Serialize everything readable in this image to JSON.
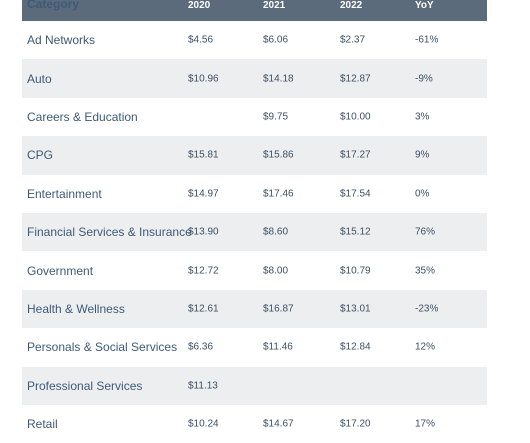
{
  "table": {
    "headers": [
      "Category",
      "2020",
      "2021",
      "2022",
      "YoY"
    ],
    "rows": [
      {
        "category": "Ad Networks",
        "y2020": "$4.56",
        "y2021": "$6.06",
        "y2022": "$2.37",
        "yoy": "-61%"
      },
      {
        "category": "Auto",
        "y2020": "$10.96",
        "y2021": "$14.18",
        "y2022": "$12.87",
        "yoy": "-9%"
      },
      {
        "category": "Careers & Education",
        "y2020": "",
        "y2021": "$9.75",
        "y2022": "$10.00",
        "yoy": "3%"
      },
      {
        "category": "CPG",
        "y2020": "$15.81",
        "y2021": "$15.86",
        "y2022": "$17.27",
        "yoy": "9%"
      },
      {
        "category": "Entertainment",
        "y2020": "$14.97",
        "y2021": "$17.46",
        "y2022": "$17.54",
        "yoy": "0%"
      },
      {
        "category": "Financial Services & Insurance",
        "y2020": "$13.90",
        "y2021": "$8.60",
        "y2022": "$15.12",
        "yoy": "76%"
      },
      {
        "category": "Government",
        "y2020": "$12.72",
        "y2021": "$8.00",
        "y2022": "$10.79",
        "yoy": "35%"
      },
      {
        "category": "Health & Wellness",
        "y2020": "$12.61",
        "y2021": "$16.87",
        "y2022": "$13.01",
        "yoy": "-23%"
      },
      {
        "category": "Personals & Social Services",
        "y2020": "$6.36",
        "y2021": "$11.46",
        "y2022": "$12.84",
        "yoy": "12%"
      },
      {
        "category": "Professional Services",
        "y2020": "$11.13",
        "y2021": "",
        "y2022": "",
        "yoy": ""
      },
      {
        "category": "Retail",
        "y2020": "$10.24",
        "y2021": "$14.67",
        "y2022": "$17.20",
        "yoy": "17%"
      }
    ]
  },
  "colors": {
    "header_bg": "#5b6b7c",
    "alt_row_bg": "#edeef0",
    "category_text": "#3e5a78",
    "value_text": "#3d4f63"
  }
}
